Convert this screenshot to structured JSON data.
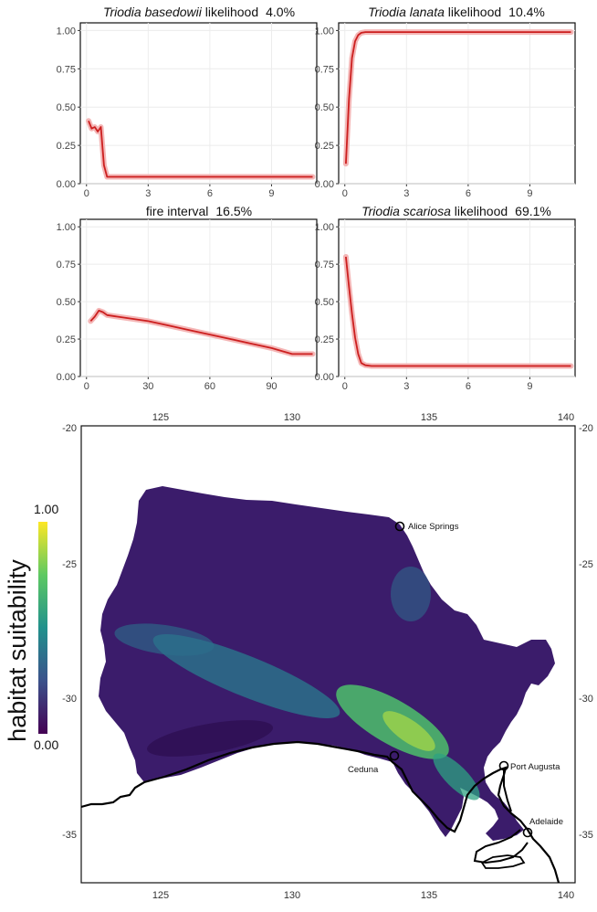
{
  "chart_data": [
    {
      "type": "line",
      "title_italic": "Triodia basedowii",
      "title_rest": " likelihood",
      "title_pct": "4.0%",
      "xlim": [
        -0.3,
        11.2
      ],
      "ylim": [
        0,
        1.05
      ],
      "x_ticks": [
        0,
        3,
        6,
        9
      ],
      "y_ticks": [
        "0.00",
        "0.25",
        "0.50",
        "0.75",
        "1.00"
      ],
      "series": [
        {
          "x": [
            0.1,
            0.25,
            0.4,
            0.55,
            0.7,
            0.85,
            1.0,
            1.3,
            2,
            4,
            6,
            8,
            10,
            11
          ],
          "y": [
            0.41,
            0.36,
            0.37,
            0.34,
            0.37,
            0.12,
            0.045,
            0.045,
            0.045,
            0.045,
            0.045,
            0.045,
            0.045,
            0.045
          ]
        }
      ]
    },
    {
      "type": "line",
      "title_italic": "Triodia lanata",
      "title_rest": " likelihood",
      "title_pct": "10.4%",
      "xlim": [
        -0.3,
        11.2
      ],
      "ylim": [
        0,
        1.05
      ],
      "x_ticks": [
        0,
        3,
        6,
        9
      ],
      "y_ticks": [
        "0.00",
        "0.25",
        "0.50",
        "0.75",
        "1.00"
      ],
      "series": [
        {
          "x": [
            0.05,
            0.2,
            0.35,
            0.5,
            0.65,
            0.8,
            1.0,
            1.5,
            3,
            6,
            9,
            11
          ],
          "y": [
            0.13,
            0.55,
            0.82,
            0.93,
            0.97,
            0.985,
            0.99,
            0.99,
            0.99,
            0.99,
            0.99,
            0.99
          ]
        }
      ]
    },
    {
      "type": "line",
      "title_italic": "",
      "title_rest": "fire interval",
      "title_pct": "16.5%",
      "xlim": [
        -3,
        112
      ],
      "ylim": [
        0,
        1.05
      ],
      "x_ticks": [
        0,
        30,
        60,
        90
      ],
      "y_ticks": [
        "0.00",
        "0.25",
        "0.50",
        "0.75",
        "1.00"
      ],
      "series": [
        {
          "x": [
            2,
            4,
            6,
            8,
            10,
            15,
            20,
            30,
            40,
            50,
            60,
            70,
            80,
            90,
            100,
            110
          ],
          "y": [
            0.37,
            0.4,
            0.44,
            0.43,
            0.41,
            0.4,
            0.39,
            0.37,
            0.34,
            0.31,
            0.28,
            0.25,
            0.22,
            0.19,
            0.15,
            0.15
          ]
        }
      ]
    },
    {
      "type": "line",
      "title_italic": "Triodia scariosa",
      "title_rest": " likelihood",
      "title_pct": "69.1%",
      "xlim": [
        -0.3,
        11.2
      ],
      "ylim": [
        0,
        1.05
      ],
      "x_ticks": [
        0,
        3,
        6,
        9
      ],
      "y_ticks": [
        "0.00",
        "0.25",
        "0.50",
        "0.75",
        "1.00"
      ],
      "series": [
        {
          "x": [
            0.05,
            0.2,
            0.35,
            0.5,
            0.65,
            0.8,
            1.0,
            1.3,
            2,
            4,
            6,
            8,
            10,
            11
          ],
          "y": [
            0.8,
            0.6,
            0.42,
            0.26,
            0.15,
            0.09,
            0.075,
            0.07,
            0.07,
            0.07,
            0.07,
            0.07,
            0.07,
            0.07
          ]
        }
      ]
    },
    {
      "type": "heatmap",
      "legend_title": "habitat suitability",
      "legend_max": "1.00",
      "legend_min": "0.00",
      "x_ticks": [
        "125",
        "130",
        "135",
        "140"
      ],
      "y_ticks": [
        "-20",
        "-25",
        "-30",
        "-35"
      ],
      "cities": [
        "Alice Springs",
        "Ceduna",
        "Port Augusta",
        "Adelaide"
      ],
      "colormap": [
        "#440154",
        "#3b528b",
        "#21918c",
        "#5ec962",
        "#fde725"
      ]
    }
  ]
}
